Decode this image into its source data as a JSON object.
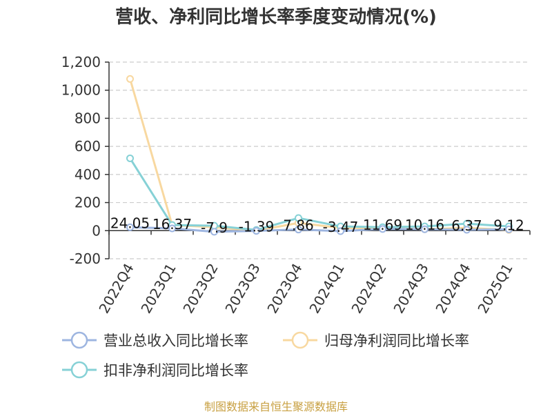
{
  "title": "营收、净利同比增长率季度变动情况(%)",
  "footer": "制图数据来自恒生聚源数据库",
  "colors": {
    "series1": "#9db5e0",
    "series2": "#f8d8a0",
    "series3": "#86d1d6",
    "grid": "#cccccc",
    "axis": "#333333",
    "footer": "#c8a042"
  },
  "chart_data": {
    "type": "line",
    "title": "营收、净利同比增长率季度变动情况(%)",
    "categories": [
      "2022Q4",
      "2023Q1",
      "2023Q2",
      "2023Q3",
      "2023Q4",
      "2024Q1",
      "2024Q2",
      "2024Q3",
      "2024Q4",
      "2025Q1"
    ],
    "ylim": [
      -200,
      1200
    ],
    "yticks": [
      "-200",
      "0",
      "200",
      "400",
      "600",
      "800",
      "1,000",
      "1,200"
    ],
    "ytick_values": [
      -200,
      0,
      200,
      400,
      600,
      800,
      1000,
      1200
    ],
    "grid": true,
    "legend_position": "bottom",
    "series": [
      {
        "name": "营业总收入同比增长率",
        "values": [
          24.05,
          16.37,
          -7.9,
          -1.39,
          7.86,
          -3.47,
          11.69,
          10.16,
          6.37,
          9.12
        ],
        "labels": [
          "24.05",
          "16.37",
          "-7.9",
          "-1.39",
          "7.86",
          "-3.47",
          "11.69",
          "10.16",
          "6.37",
          "9.12"
        ]
      },
      {
        "name": "归母净利润同比增长率",
        "values": [
          1080,
          40,
          25,
          0,
          55,
          20,
          15,
          10,
          20,
          5
        ]
      },
      {
        "name": "扣非净利润同比增长率",
        "values": [
          515,
          40,
          35,
          5,
          90,
          30,
          25,
          30,
          50,
          30
        ]
      }
    ]
  }
}
